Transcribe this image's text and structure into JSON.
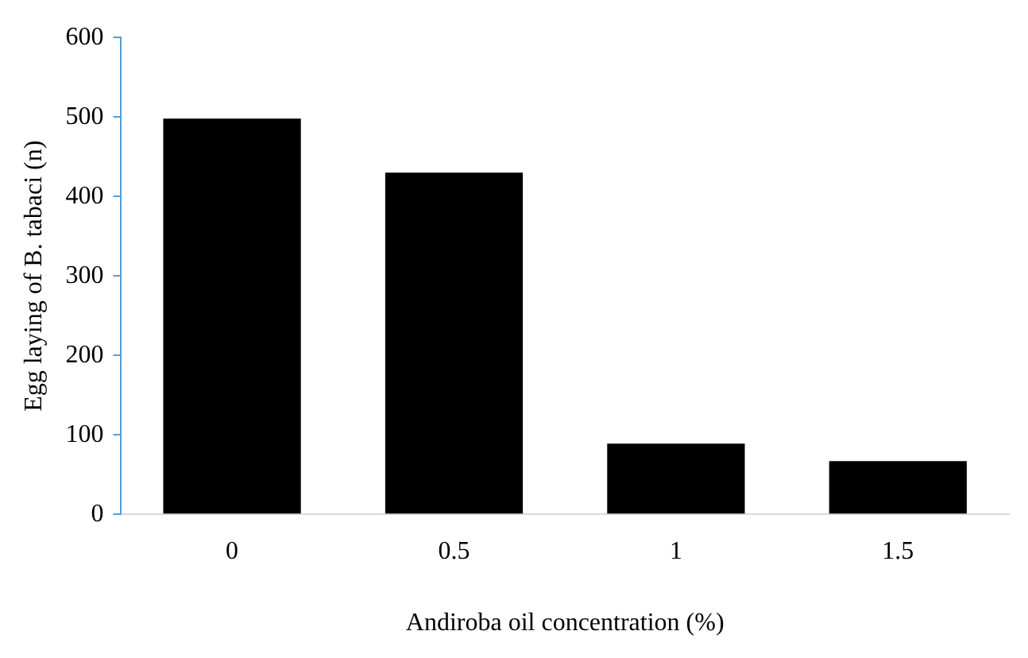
{
  "chart_data": {
    "type": "bar",
    "xlabel": "Andiroba oil concentration (%)",
    "ylabel": "Egg laying of B. tabaci (n)",
    "categories": [
      "0",
      "0.5",
      "1",
      "1.5"
    ],
    "values": [
      498,
      430,
      89,
      67
    ],
    "color": "#000000",
    "ylim": [
      0,
      600
    ],
    "yticks": [
      0,
      100,
      200,
      300,
      400,
      500,
      600
    ],
    "grid": false,
    "legend": false
  }
}
